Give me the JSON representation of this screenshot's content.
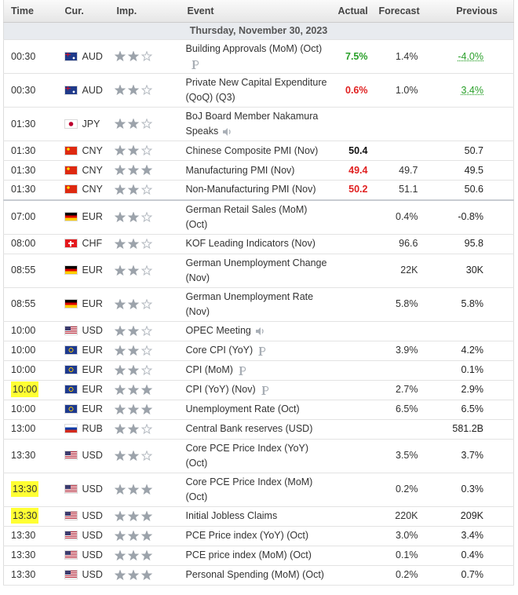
{
  "header": {
    "columns": [
      "Time",
      "Cur.",
      "Imp.",
      "Event",
      "Actual",
      "Forecast",
      "Previous"
    ]
  },
  "table": {
    "date": "Thursday, November 30, 2023",
    "rows": [
      {
        "time": "00:30",
        "flag": "au",
        "currency": "AUD",
        "importance": 2,
        "event": "Building Approvals (MoM) (Oct)",
        "preliminary": true,
        "actual": "7.5%",
        "actual_color": "#2aa02a",
        "forecast": "1.4%",
        "previous": "-4.0%",
        "previous_color": "#2aa02a",
        "previous_revised": true
      },
      {
        "time": "00:30",
        "flag": "au",
        "currency": "AUD",
        "importance": 2,
        "event": "Private New Capital Expenditure (QoQ) (Q3)",
        "actual": "0.6%",
        "actual_color": "#e02020",
        "forecast": "1.0%",
        "previous": "3.4%",
        "previous_color": "#2aa02a",
        "previous_revised": true
      },
      {
        "time": "01:30",
        "flag": "jp",
        "currency": "JPY",
        "importance": 2,
        "event": "BoJ Board Member Nakamura Speaks",
        "speech": true
      },
      {
        "time": "01:30",
        "flag": "cn",
        "currency": "CNY",
        "importance": 2,
        "event": "Chinese Composite PMI (Nov)",
        "actual": "50.4",
        "actual_color": "#111111",
        "previous": "50.7"
      },
      {
        "time": "01:30",
        "flag": "cn",
        "currency": "CNY",
        "importance": 3,
        "event": "Manufacturing PMI (Nov)",
        "actual": "49.4",
        "actual_color": "#e02020",
        "forecast": "49.7",
        "previous": "49.5"
      },
      {
        "time": "01:30",
        "flag": "cn",
        "currency": "CNY",
        "importance": 2,
        "event": "Non-Manufacturing PMI (Nov)",
        "actual": "50.2",
        "actual_color": "#e02020",
        "forecast": "51.1",
        "previous": "50.6"
      },
      {
        "time": "07:00",
        "flag": "de",
        "currency": "EUR",
        "importance": 2,
        "event": "German Retail Sales (MoM) (Oct)",
        "forecast": "0.4%",
        "previous": "-0.8%",
        "divider_before": true
      },
      {
        "time": "08:00",
        "flag": "ch",
        "currency": "CHF",
        "importance": 2,
        "event": "KOF Leading Indicators (Nov)",
        "forecast": "96.6",
        "previous": "95.8"
      },
      {
        "time": "08:55",
        "flag": "de",
        "currency": "EUR",
        "importance": 2,
        "event": "German Unemployment Change (Nov)",
        "forecast": "22K",
        "previous": "30K"
      },
      {
        "time": "08:55",
        "flag": "de",
        "currency": "EUR",
        "importance": 2,
        "event": "German Unemployment Rate (Nov)",
        "forecast": "5.8%",
        "previous": "5.8%"
      },
      {
        "time": "10:00",
        "flag": "us",
        "currency": "USD",
        "importance": 2,
        "event": "OPEC Meeting",
        "speech": true
      },
      {
        "time": "10:00",
        "flag": "eu",
        "currency": "EUR",
        "importance": 2,
        "event": "Core CPI (YoY)",
        "preliminary": true,
        "forecast": "3.9%",
        "previous": "4.2%"
      },
      {
        "time": "10:00",
        "flag": "eu",
        "currency": "EUR",
        "importance": 2,
        "event": "CPI (MoM)",
        "preliminary": true,
        "previous": "0.1%"
      },
      {
        "time": "10:00",
        "flag": "eu",
        "currency": "EUR",
        "importance": 3,
        "event": "CPI (YoY) (Nov)",
        "preliminary": true,
        "forecast": "2.7%",
        "previous": "2.9%",
        "highlight": true
      },
      {
        "time": "10:00",
        "flag": "eu",
        "currency": "EUR",
        "importance": 3,
        "event": "Unemployment Rate (Oct)",
        "forecast": "6.5%",
        "previous": "6.5%"
      },
      {
        "time": "13:00",
        "flag": "ru",
        "currency": "RUB",
        "importance": 2,
        "event": "Central Bank reserves (USD)",
        "previous": "581.2B"
      },
      {
        "time": "13:30",
        "flag": "us",
        "currency": "USD",
        "importance": 2,
        "event": "Core PCE Price Index (YoY) (Oct)",
        "forecast": "3.5%",
        "previous": "3.7%"
      },
      {
        "time": "13:30",
        "flag": "us",
        "currency": "USD",
        "importance": 3,
        "event": "Core PCE Price Index (MoM) (Oct)",
        "forecast": "0.2%",
        "previous": "0.3%",
        "highlight": true
      },
      {
        "time": "13:30",
        "flag": "us",
        "currency": "USD",
        "importance": 3,
        "event": "Initial Jobless Claims",
        "forecast": "220K",
        "previous": "209K",
        "highlight": true
      },
      {
        "time": "13:30",
        "flag": "us",
        "currency": "USD",
        "importance": 3,
        "event": "PCE Price index (YoY) (Oct)",
        "forecast": "3.0%",
        "previous": "3.4%"
      },
      {
        "time": "13:30",
        "flag": "us",
        "currency": "USD",
        "importance": 3,
        "event": "PCE price index (MoM) (Oct)",
        "forecast": "0.1%",
        "previous": "0.4%"
      },
      {
        "time": "13:30",
        "flag": "us",
        "currency": "USD",
        "importance": 3,
        "event": "Personal Spending (MoM) (Oct)",
        "forecast": "0.2%",
        "previous": "0.7%"
      }
    ]
  }
}
